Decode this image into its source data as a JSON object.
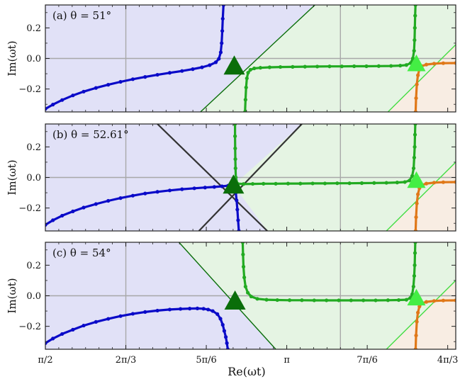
{
  "chart_data": {
    "type": "line",
    "xlabel": "Re(ωt)",
    "ylabel": "Im(ωt)",
    "xlim": [
      1.5707963,
      4.2411501
    ],
    "ylim": [
      -0.35,
      0.35
    ],
    "x_ticks": [
      {
        "value": 1.5707963,
        "label": "π/2"
      },
      {
        "value": 2.0943951,
        "label": "2π/3"
      },
      {
        "value": 2.6179939,
        "label": "5π/6"
      },
      {
        "value": 3.1415927,
        "label": "π"
      },
      {
        "value": 3.6651914,
        "label": "7π/6"
      },
      {
        "value": 4.1887902,
        "label": "4π/3"
      }
    ],
    "y_ticks": [
      {
        "value": 0.2,
        "label": "0.2"
      },
      {
        "value": 0.0,
        "label": "0.0"
      },
      {
        "value": -0.2,
        "label": "−0.2"
      }
    ],
    "vertical_reference_lines": [
      2.0943951,
      3.4906585
    ],
    "horizontal_reference_line": 0.0,
    "region_colors": {
      "blue": "#e1e1f7",
      "green": "#e5f4e3",
      "orange": "#f8ede3"
    },
    "curve_colors": {
      "blue": "#0a0ac8",
      "green": "#22aa22",
      "orange": "#e07818"
    },
    "triangle_colors": {
      "dark": "#0a6e0a",
      "light": "#44ee44"
    },
    "panels": [
      {
        "label": "(a) θ = 51°",
        "triangles": [
          {
            "x": 2.8,
            "y": -0.05,
            "color": "dark"
          },
          {
            "x": 3.985,
            "y": -0.035,
            "color": "light"
          }
        ],
        "region_lines": [
          {
            "points": [
              [
                2.58,
                -0.35
              ],
              [
                3.325,
                0.35
              ]
            ],
            "color": "#0a6e0a"
          },
          {
            "points": [
              [
                3.8,
                -0.35
              ],
              [
                4.241,
                0.09
              ]
            ],
            "color": "#44dd44"
          }
        ],
        "blue_curve": {
          "x": [
            1.5708,
            1.62,
            1.68,
            1.75,
            1.82,
            1.9,
            1.98,
            2.06,
            2.14,
            2.22,
            2.3,
            2.38,
            2.46,
            2.53,
            2.59,
            2.64,
            2.68,
            2.7,
            2.712,
            2.718,
            2.722,
            2.725,
            2.73
          ],
          "y": [
            -0.33,
            -0.302,
            -0.272,
            -0.242,
            -0.217,
            -0.193,
            -0.172,
            -0.153,
            -0.136,
            -0.121,
            -0.107,
            -0.094,
            -0.082,
            -0.07,
            -0.058,
            -0.044,
            -0.025,
            -0.002,
            0.04,
            0.1,
            0.18,
            0.26,
            0.35
          ]
        },
        "green_curve": {
          "x": [
            2.87,
            2.873,
            2.877,
            2.882,
            2.89,
            2.905,
            2.93,
            2.97,
            3.03,
            3.1,
            3.18,
            3.26,
            3.34,
            3.42,
            3.5,
            3.58,
            3.66,
            3.74,
            3.82,
            3.88,
            3.92,
            3.948,
            3.962,
            3.97,
            3.973,
            3.975,
            3.977,
            3.979
          ],
          "y": [
            -0.35,
            -0.27,
            -0.19,
            -0.13,
            -0.093,
            -0.074,
            -0.065,
            -0.061,
            -0.058,
            -0.056,
            -0.055,
            -0.054,
            -0.053,
            -0.052,
            -0.052,
            -0.051,
            -0.051,
            -0.05,
            -0.049,
            -0.047,
            -0.043,
            -0.03,
            0.0,
            0.05,
            0.12,
            0.2,
            0.28,
            0.35
          ]
        },
        "orange_curve": {
          "x": [
            3.98,
            3.983,
            3.988,
            3.995,
            4.005,
            4.02,
            4.05,
            4.1,
            4.16,
            4.241
          ],
          "y": [
            -0.35,
            -0.26,
            -0.17,
            -0.11,
            -0.07,
            -0.05,
            -0.04,
            -0.034,
            -0.031,
            -0.03
          ]
        }
      },
      {
        "label": "(b) θ = 52.61°",
        "triangles": [
          {
            "x": 2.795,
            "y": -0.05,
            "color": "dark"
          },
          {
            "x": 3.985,
            "y": -0.02,
            "color": "light"
          }
        ],
        "region_lines": [
          {
            "points": [
              [
                2.3,
                0.35
              ],
              [
                3.015,
                -0.35
              ]
            ],
            "color": "#333333",
            "width": 2.2
          },
          {
            "points": [
              [
                2.57,
                -0.35
              ],
              [
                3.24,
                0.35
              ]
            ],
            "color": "#333333",
            "width": 2.2
          },
          {
            "points": [
              [
                3.79,
                -0.35
              ],
              [
                4.241,
                0.1
              ]
            ],
            "color": "#44dd44"
          }
        ],
        "blue_curve": {
          "x": [
            1.5708,
            1.62,
            1.68,
            1.75,
            1.82,
            1.9,
            1.98,
            2.06,
            2.14,
            2.22,
            2.3,
            2.38,
            2.46,
            2.54,
            2.61,
            2.67,
            2.72,
            2.76,
            2.785,
            2.8,
            2.81,
            2.815,
            2.82,
            2.825,
            2.83
          ],
          "y": [
            -0.31,
            -0.28,
            -0.25,
            -0.222,
            -0.197,
            -0.174,
            -0.153,
            -0.135,
            -0.119,
            -0.105,
            -0.094,
            -0.085,
            -0.077,
            -0.071,
            -0.066,
            -0.062,
            -0.058,
            -0.054,
            -0.05,
            -0.06,
            -0.1,
            -0.15,
            -0.21,
            -0.28,
            -0.35
          ]
        },
        "green_curve": {
          "x": [
            2.805,
            2.805,
            2.806,
            2.807,
            2.808,
            2.81,
            2.82,
            2.86,
            2.92,
            2.99,
            3.07,
            3.15,
            3.23,
            3.31,
            3.39,
            3.47,
            3.55,
            3.63,
            3.71,
            3.79,
            3.86,
            3.91,
            3.94,
            3.958,
            3.967,
            3.971,
            3.974,
            3.976,
            3.978
          ],
          "y": [
            0.35,
            0.27,
            0.19,
            0.12,
            0.06,
            0.0,
            -0.04,
            -0.043,
            -0.042,
            -0.041,
            -0.041,
            -0.04,
            -0.04,
            -0.039,
            -0.039,
            -0.038,
            -0.038,
            -0.037,
            -0.036,
            -0.035,
            -0.033,
            -0.03,
            -0.02,
            0.01,
            0.06,
            0.13,
            0.2,
            0.28,
            0.35
          ]
        },
        "orange_curve": {
          "x": [
            3.98,
            3.983,
            3.988,
            3.995,
            4.005,
            4.02,
            4.05,
            4.1,
            4.16,
            4.241
          ],
          "y": [
            -0.35,
            -0.26,
            -0.17,
            -0.11,
            -0.07,
            -0.05,
            -0.04,
            -0.034,
            -0.031,
            -0.03
          ]
        }
      },
      {
        "label": "(c) θ = 54°",
        "triangles": [
          {
            "x": 2.805,
            "y": -0.035,
            "color": "dark"
          },
          {
            "x": 3.985,
            "y": -0.015,
            "color": "light"
          }
        ],
        "region_lines": [
          {
            "points": [
              [
                2.44,
                0.35
              ],
              [
                3.07,
                -0.35
              ]
            ],
            "color": "#0a6e0a"
          },
          {
            "points": [
              [
                3.79,
                -0.35
              ],
              [
                4.241,
                0.1
              ]
            ],
            "color": "#44dd44"
          }
        ],
        "blue_curve": {
          "x": [
            1.5708,
            1.62,
            1.68,
            1.75,
            1.82,
            1.9,
            1.98,
            2.06,
            2.14,
            2.22,
            2.3,
            2.38,
            2.45,
            2.51,
            2.56,
            2.6,
            2.63,
            2.66,
            2.69,
            2.71,
            2.725,
            2.735,
            2.745,
            2.752,
            2.758
          ],
          "y": [
            -0.31,
            -0.28,
            -0.25,
            -0.222,
            -0.195,
            -0.171,
            -0.151,
            -0.133,
            -0.118,
            -0.106,
            -0.097,
            -0.09,
            -0.086,
            -0.084,
            -0.083,
            -0.085,
            -0.09,
            -0.1,
            -0.12,
            -0.15,
            -0.19,
            -0.23,
            -0.27,
            -0.31,
            -0.35
          ]
        },
        "green_curve": {
          "x": [
            2.855,
            2.857,
            2.86,
            2.865,
            2.873,
            2.888,
            2.91,
            2.95,
            3.01,
            3.08,
            3.16,
            3.24,
            3.32,
            3.4,
            3.48,
            3.56,
            3.64,
            3.72,
            3.8,
            3.87,
            3.92,
            3.945,
            3.958,
            3.966,
            3.971,
            3.974,
            3.976,
            3.978
          ],
          "y": [
            0.35,
            0.27,
            0.19,
            0.12,
            0.06,
            0.02,
            -0.005,
            -0.02,
            -0.026,
            -0.028,
            -0.029,
            -0.029,
            -0.03,
            -0.03,
            -0.03,
            -0.03,
            -0.03,
            -0.03,
            -0.029,
            -0.028,
            -0.026,
            -0.015,
            0.01,
            0.06,
            0.13,
            0.2,
            0.28,
            0.35
          ]
        },
        "orange_curve": {
          "x": [
            3.98,
            3.983,
            3.988,
            3.995,
            4.005,
            4.02,
            4.05,
            4.1,
            4.16,
            4.241
          ],
          "y": [
            -0.35,
            -0.26,
            -0.17,
            -0.11,
            -0.07,
            -0.05,
            -0.04,
            -0.034,
            -0.031,
            -0.03
          ]
        }
      }
    ]
  }
}
